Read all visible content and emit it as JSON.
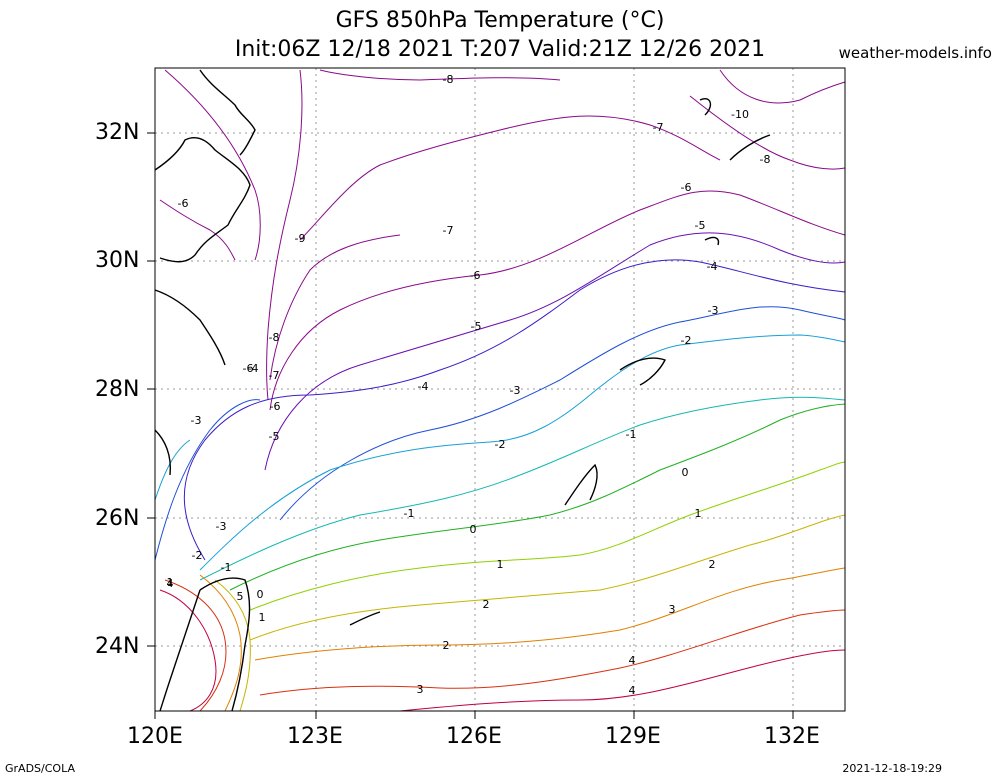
{
  "title_line1": "GFS 850hPa Temperature (°C)",
  "title_line2": "Init:06Z 12/18 2021 T:207 Valid:21Z 12/26 2021",
  "credit": "weather-models.info",
  "footer_left": "GrADS/COLA",
  "footer_right": "2021-12-18-19:29",
  "lat_labels": [
    "32N",
    "30N",
    "28N",
    "26N",
    "24N"
  ],
  "lon_labels": [
    "120E",
    "123E",
    "126E",
    "129E",
    "132E"
  ],
  "colors": {
    "coast": "#000000",
    "grid": "#999999",
    "m10": "#8a0a8a",
    "m9": "#8a0a8a",
    "m8": "#8a0a8a",
    "m7": "#8a0a8a",
    "m6": "#8a0a8a",
    "m5": "#6a10b0",
    "m4": "#3c1cc8",
    "m3": "#1e4fd8",
    "m2": "#18a0d8",
    "m1": "#14b8b0",
    "z0": "#20b020",
    "p1": "#90d000",
    "p2": "#c8b400",
    "p3": "#e08000",
    "p4": "#d83010",
    "p5": "#c00040"
  },
  "contour_labels": [
    "-10",
    "-9",
    "-8",
    "-8",
    "-8",
    "-7",
    "-7",
    "-7",
    "-6",
    "-6",
    "-6",
    "-6",
    "-6",
    "-5",
    "-5",
    "-5",
    "-4",
    "-4",
    "-4",
    "-3",
    "-3",
    "-3",
    "-3",
    "-2",
    "-2",
    "-2",
    "-1",
    "-1",
    "-1",
    "0",
    "0",
    "0",
    "1",
    "1",
    "1",
    "1",
    "2",
    "2",
    "2",
    "3",
    "3",
    "4",
    "4",
    "4",
    "5"
  ]
}
